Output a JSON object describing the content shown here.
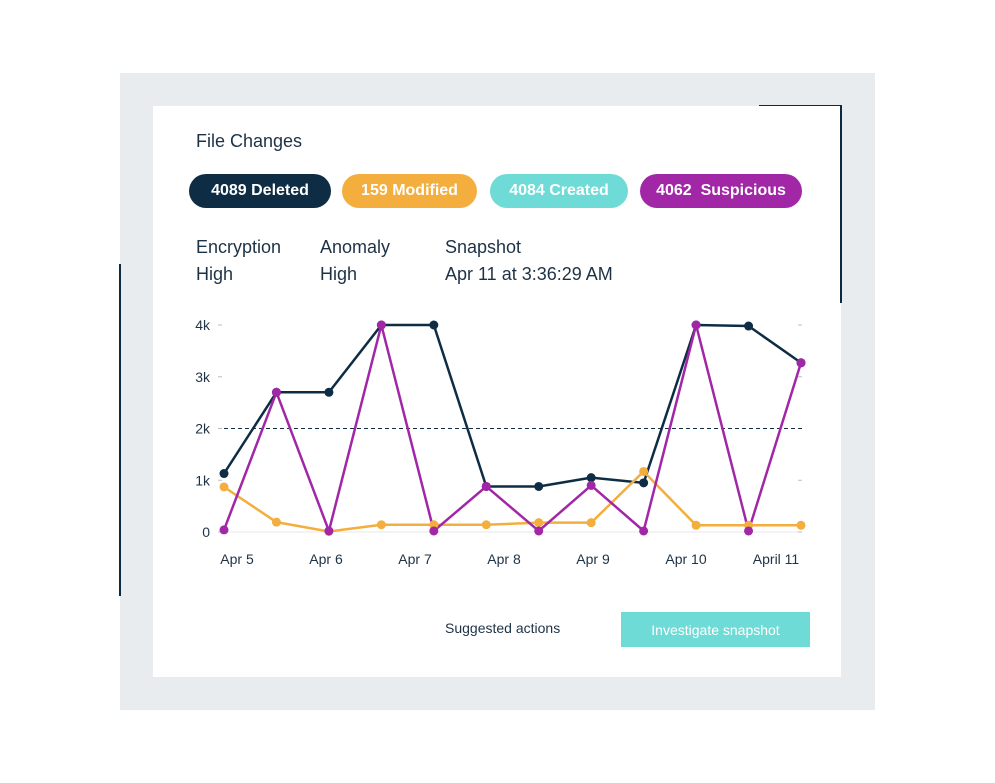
{
  "card": {
    "title": "File Changes"
  },
  "pills": [
    {
      "label": "4089 Deleted",
      "color": "#0e2d45"
    },
    {
      "label": "159 Modified",
      "color": "#f3ae3e"
    },
    {
      "label": "4084 Created",
      "color": "#6fdbd6"
    },
    {
      "label": "4062  Suspicious",
      "color": "#a127a7"
    }
  ],
  "meta": [
    {
      "label": "Encryption",
      "value": "High"
    },
    {
      "label": "Anomaly",
      "value": "High"
    },
    {
      "label": "Snapshot",
      "value": "Apr 11 at 3:36:29 AM"
    }
  ],
  "chart_data": {
    "type": "line",
    "ytick_labels": [
      "0",
      "1k",
      "2k",
      "3k",
      "4k"
    ],
    "yticks": [
      0,
      1000,
      2000,
      3000,
      4000
    ],
    "ylim": [
      0,
      4000
    ],
    "xtick_labels": [
      "Apr 5",
      "Apr 6",
      "Apr 7",
      "Apr 8",
      "Apr 9",
      "Apr 10",
      "April 11"
    ],
    "reference_line": 2000,
    "series": [
      {
        "color": "#0e2d45",
        "values": [
          1130,
          2700,
          2700,
          4000,
          4000,
          880,
          880,
          1050,
          950,
          4000,
          3980,
          3270
        ]
      },
      {
        "color": "#f3ae3e",
        "values": [
          870,
          190,
          10,
          140,
          140,
          140,
          180,
          180,
          1170,
          130,
          130,
          130
        ]
      },
      {
        "color": "#a127a7",
        "values": [
          40,
          2700,
          20,
          4000,
          20,
          880,
          20,
          900,
          20,
          4000,
          20,
          3270
        ]
      }
    ]
  },
  "footer": {
    "suggested_label": "Suggested actions",
    "button_label": "Investigate snapshot"
  }
}
